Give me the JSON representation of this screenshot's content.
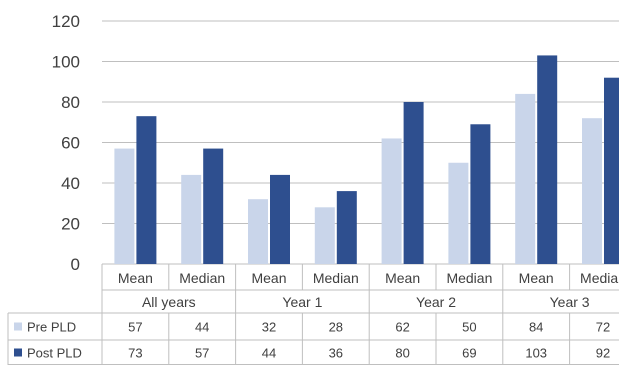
{
  "chart_data": {
    "type": "bar",
    "groups": [
      "All years",
      "Year 1",
      "Year 2",
      "Year 3"
    ],
    "categories": [
      "Mean",
      "Median",
      "Mean",
      "Median",
      "Mean",
      "Median",
      "Mean",
      "Median"
    ],
    "series": [
      {
        "name": "Pre PLD",
        "values": [
          57,
          44,
          32,
          28,
          62,
          50,
          84,
          72
        ],
        "color": "#c9d5ea"
      },
      {
        "name": "Post PLD",
        "values": [
          73,
          57,
          44,
          36,
          80,
          69,
          103,
          92
        ],
        "color": "#2e4f8f"
      }
    ],
    "yticks": [
      "120",
      "100",
      "80",
      "60",
      "40",
      "20",
      "0"
    ],
    "ylim": [
      0,
      120
    ],
    "grid": true,
    "legend": "data-table"
  }
}
